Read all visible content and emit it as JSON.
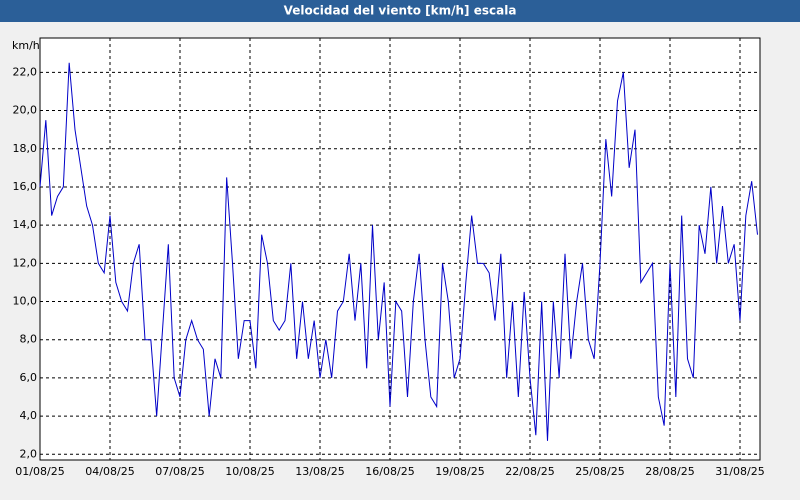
{
  "chart_data": {
    "type": "line",
    "title": "Velocidad del viento [km/h] escala",
    "y_unit": "km/h",
    "categories": [
      "01/08/25",
      null,
      null,
      null,
      null,
      null,
      null,
      null,
      null,
      null,
      null,
      null,
      "04/08/25",
      null,
      null,
      null,
      null,
      null,
      null,
      null,
      null,
      null,
      null,
      null,
      "07/08/25",
      null,
      null,
      null,
      null,
      null,
      null,
      null,
      null,
      null,
      null,
      null,
      "10/08/25",
      null,
      null,
      null,
      null,
      null,
      null,
      null,
      null,
      null,
      null,
      null,
      "13/08/25",
      null,
      null,
      null,
      null,
      null,
      null,
      null,
      null,
      null,
      null,
      null,
      "16/08/25",
      null,
      null,
      null,
      null,
      null,
      null,
      null,
      null,
      null,
      null,
      null,
      "19/08/25",
      null,
      null,
      null,
      null,
      null,
      null,
      null,
      null,
      null,
      null,
      null,
      "22/08/25",
      null,
      null,
      null,
      null,
      null,
      null,
      null,
      null,
      null,
      null,
      null,
      "25/08/25",
      null,
      null,
      null,
      null,
      null,
      null,
      null,
      null,
      null,
      null,
      null,
      "28/08/25",
      null,
      null,
      null,
      null,
      null,
      null,
      null,
      null,
      null,
      null,
      null,
      "31/08/25",
      null,
      null,
      null
    ],
    "values": [
      16,
      19.5,
      14.5,
      15.5,
      16,
      22.5,
      19,
      17,
      15,
      14,
      12,
      11.5,
      14.5,
      11,
      10,
      9.5,
      12,
      13,
      8,
      8,
      4,
      8.5,
      13,
      6,
      5,
      8,
      9,
      8,
      7.5,
      4,
      7,
      6,
      16.5,
      12,
      7,
      9,
      9,
      6.5,
      13.5,
      12,
      9,
      8.5,
      9,
      12,
      7,
      10,
      7,
      9,
      6,
      8,
      6,
      9.5,
      10,
      12.5,
      9,
      12,
      6.5,
      14,
      8,
      11,
      4.5,
      10,
      9.5,
      5,
      10,
      12.5,
      8,
      5,
      4.5,
      12,
      10,
      6,
      7,
      11,
      14.5,
      12,
      12,
      11.5,
      9,
      12.5,
      6,
      10,
      5,
      10.5,
      6,
      3,
      10,
      2.7,
      10,
      6,
      12.5,
      7,
      10,
      12,
      8,
      7,
      12,
      18.5,
      15.5,
      20.5,
      22,
      17,
      19,
      11,
      11.5,
      12,
      5,
      3.5,
      12,
      5,
      14.5,
      7,
      6,
      14,
      12.5,
      16,
      12,
      15,
      12,
      13,
      9,
      14.5,
      16.3,
      13.5
    ],
    "color": "#0000c8",
    "ylim": [
      1.7,
      23.8
    ],
    "yticks": [
      {
        "value": 2,
        "label": "2,0"
      },
      {
        "value": 4,
        "label": "4,0"
      },
      {
        "value": 6,
        "label": "6,0"
      },
      {
        "value": 8,
        "label": "8,0"
      },
      {
        "value": 10,
        "label": "10,0"
      },
      {
        "value": 12,
        "label": "12,0"
      },
      {
        "value": 14,
        "label": "14,0"
      },
      {
        "value": 16,
        "label": "16,0"
      },
      {
        "value": 18,
        "label": "18,0"
      },
      {
        "value": 20,
        "label": "20,0"
      },
      {
        "value": 22,
        "label": "22,0"
      }
    ],
    "grid": true
  }
}
